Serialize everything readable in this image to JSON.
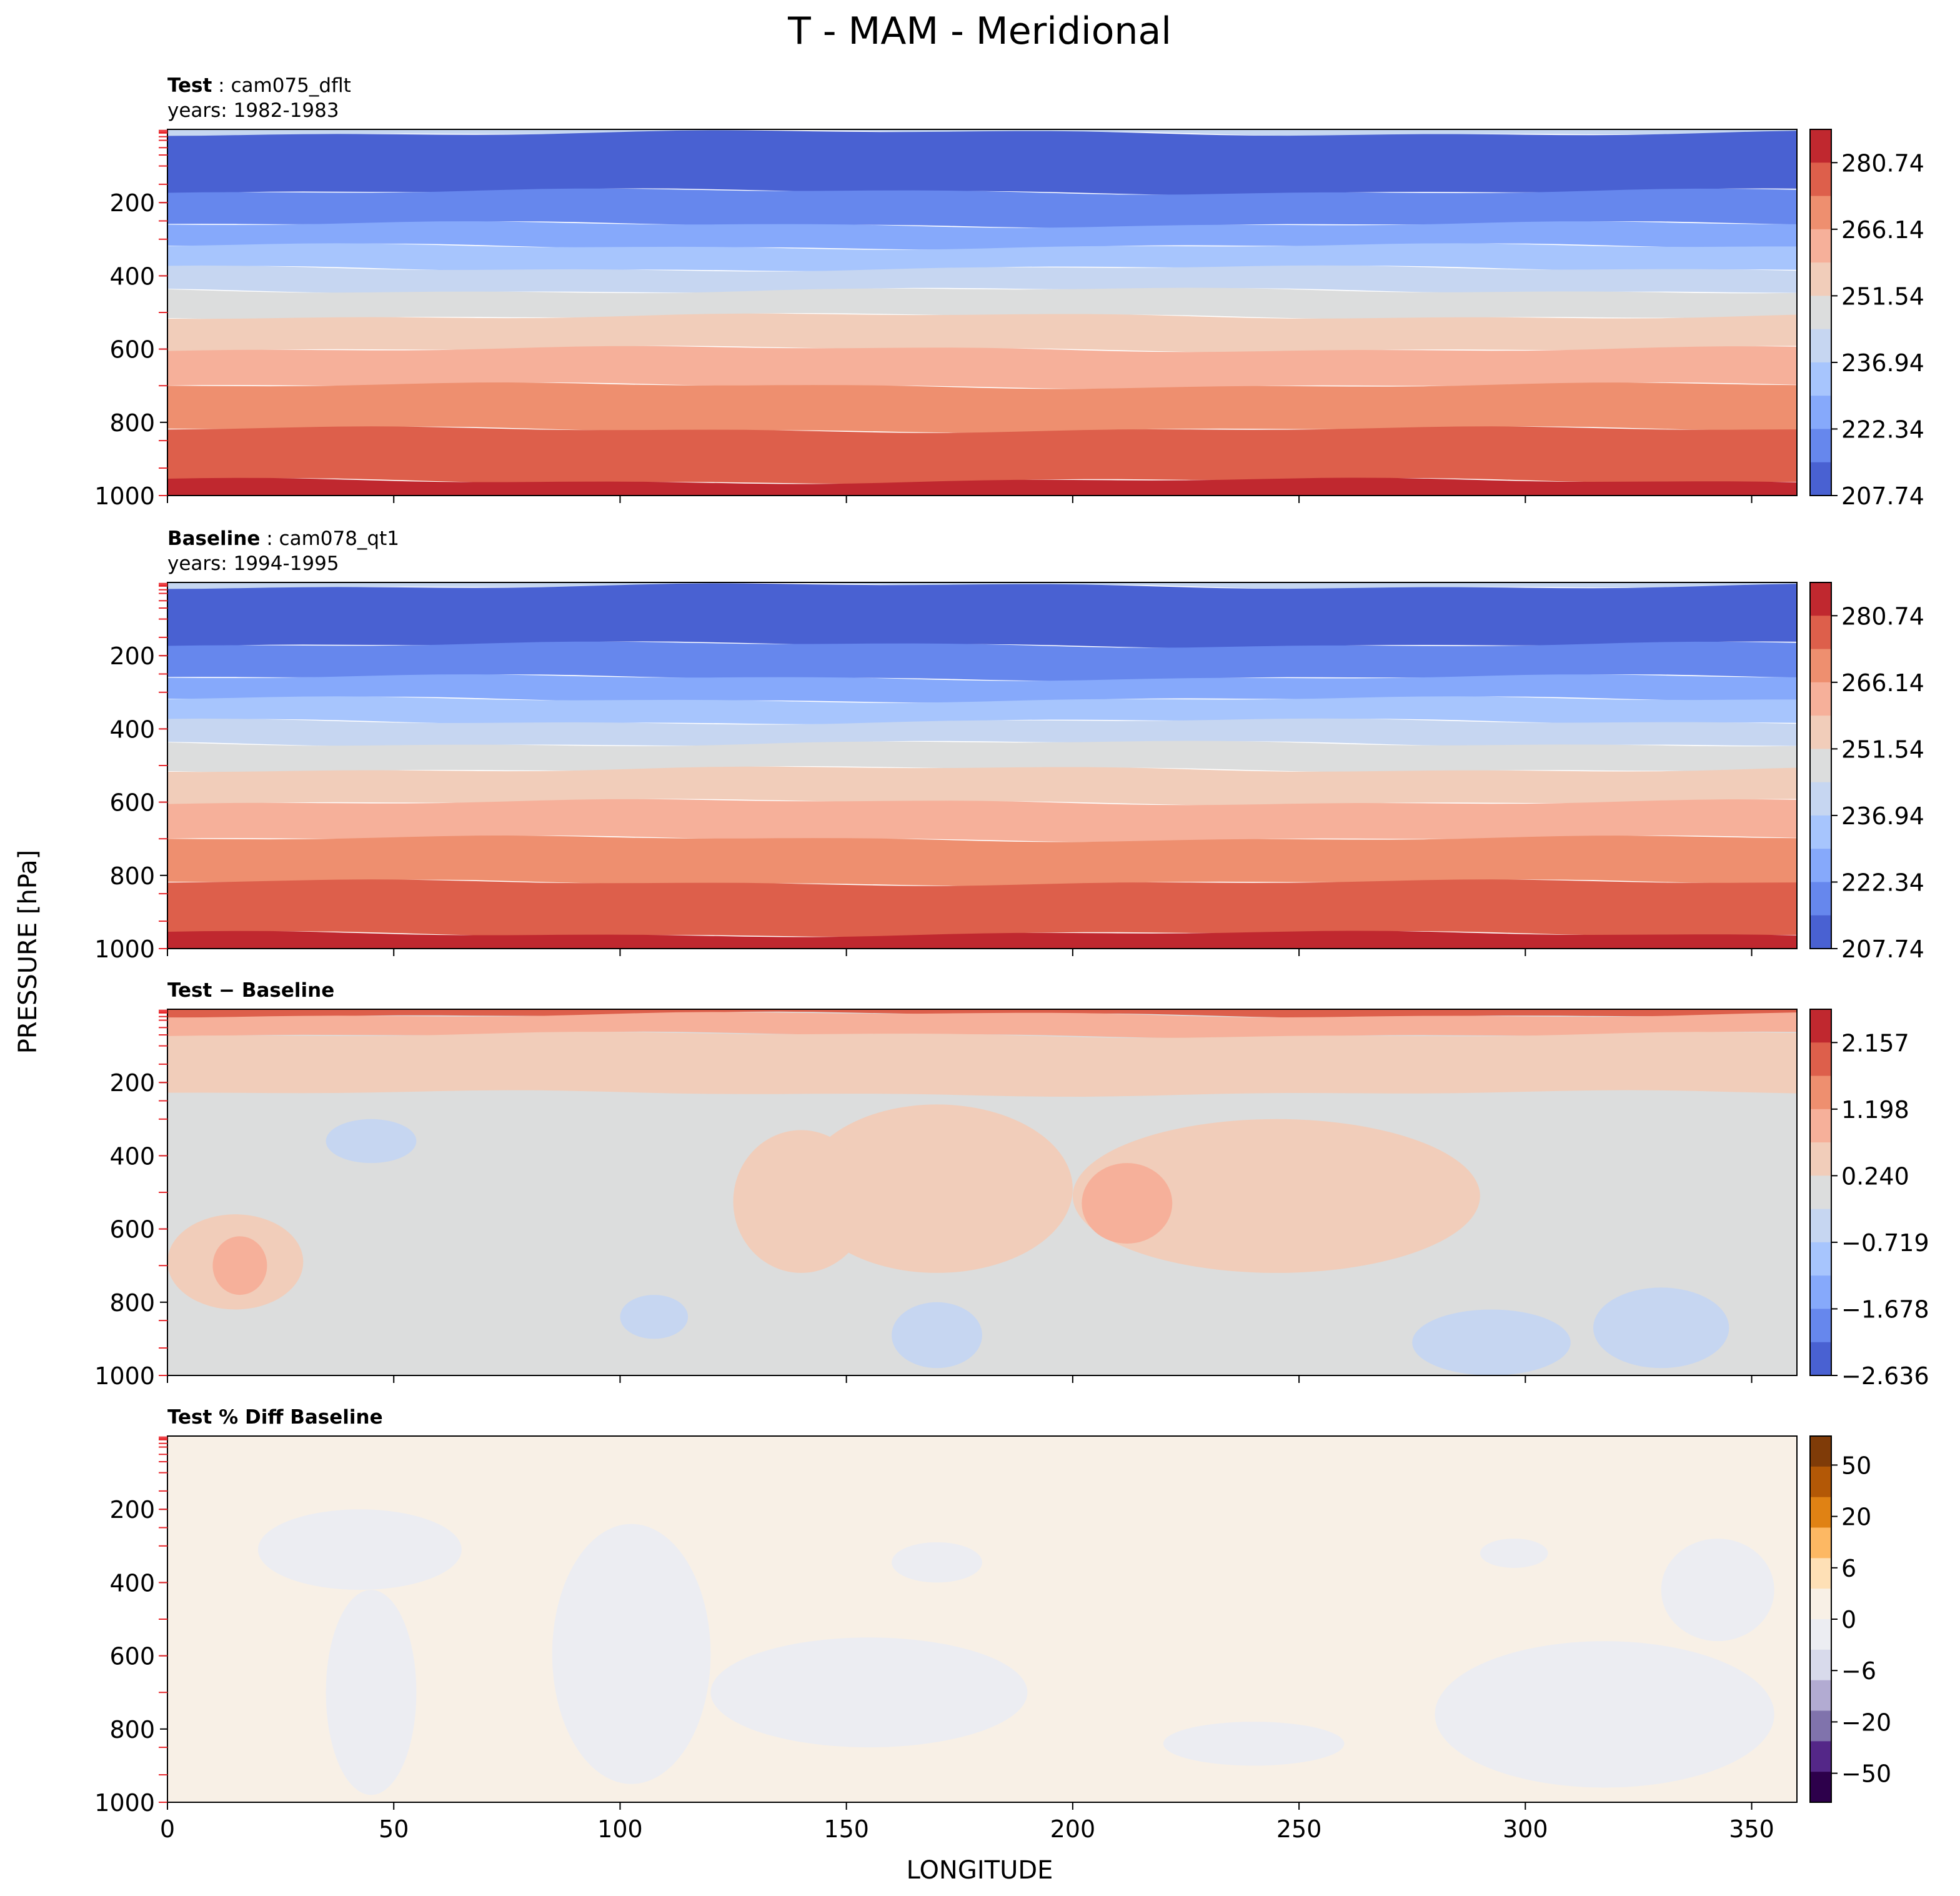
{
  "figure": {
    "title": "T - MAM - Meridional",
    "ylabel": "PRESSURE [hPa]",
    "xlabel": "LONGITUDE"
  },
  "chart_data": [
    {
      "type": "heatmap",
      "panel": "test",
      "title_bold": "Test",
      "title_rest": ": cam075_dflt",
      "years": "years: 1982-1983",
      "xlim": [
        0,
        360
      ],
      "ylim": [
        1000,
        0
      ],
      "xticks": [
        0,
        50,
        100,
        150,
        200,
        250,
        300,
        350
      ],
      "yticks": [
        200,
        400,
        600,
        800,
        1000
      ],
      "bands": [
        {
          "p_top": 0,
          "p_bot": 10,
          "color": "#c6d7f1"
        },
        {
          "p_top": 10,
          "p_bot": 170,
          "color": "#4961d2"
        },
        {
          "p_top": 170,
          "p_bot": 260,
          "color": "#6687ed"
        },
        {
          "p_top": 260,
          "p_bot": 320,
          "color": "#86a9fb"
        },
        {
          "p_top": 320,
          "p_bot": 380,
          "color": "#a7c5fd"
        },
        {
          "p_top": 380,
          "p_bot": 440,
          "color": "#c6d6f1"
        },
        {
          "p_top": 440,
          "p_bot": 510,
          "color": "#dcdddd"
        },
        {
          "p_top": 510,
          "p_bot": 600,
          "color": "#f1cdba"
        },
        {
          "p_top": 600,
          "p_bot": 700,
          "color": "#f6b09a"
        },
        {
          "p_top": 700,
          "p_bot": 820,
          "color": "#ee8f6f"
        },
        {
          "p_top": 820,
          "p_bot": 960,
          "color": "#dd5f4b"
        },
        {
          "p_top": 960,
          "p_bot": 1000,
          "color": "#c0282f"
        }
      ],
      "colorbar": {
        "labels": [
          "280.74",
          "266.14",
          "251.54",
          "236.94",
          "222.34",
          "207.74"
        ],
        "colors": [
          "#c0282f",
          "#dd5f4b",
          "#ee8f6f",
          "#f6b09a",
          "#f1cdba",
          "#dcdddd",
          "#c6d6f1",
          "#a7c5fd",
          "#86a9fb",
          "#6687ed",
          "#4961d2"
        ]
      }
    },
    {
      "type": "heatmap",
      "panel": "baseline",
      "title_bold": "Baseline",
      "title_rest": ": cam078_qt1",
      "years": "years: 1994-1995",
      "xlim": [
        0,
        360
      ],
      "ylim": [
        1000,
        0
      ],
      "xticks": [
        0,
        50,
        100,
        150,
        200,
        250,
        300,
        350
      ],
      "yticks": [
        200,
        400,
        600,
        800,
        1000
      ],
      "bands": [
        {
          "p_top": 0,
          "p_bot": 10,
          "color": "#c6d7f1"
        },
        {
          "p_top": 10,
          "p_bot": 170,
          "color": "#4961d2"
        },
        {
          "p_top": 170,
          "p_bot": 260,
          "color": "#6687ed"
        },
        {
          "p_top": 260,
          "p_bot": 320,
          "color": "#86a9fb"
        },
        {
          "p_top": 320,
          "p_bot": 380,
          "color": "#a7c5fd"
        },
        {
          "p_top": 380,
          "p_bot": 440,
          "color": "#c6d6f1"
        },
        {
          "p_top": 440,
          "p_bot": 510,
          "color": "#dcdddd"
        },
        {
          "p_top": 510,
          "p_bot": 600,
          "color": "#f1cdba"
        },
        {
          "p_top": 600,
          "p_bot": 700,
          "color": "#f6b09a"
        },
        {
          "p_top": 700,
          "p_bot": 820,
          "color": "#ee8f6f"
        },
        {
          "p_top": 820,
          "p_bot": 960,
          "color": "#dd5f4b"
        },
        {
          "p_top": 960,
          "p_bot": 1000,
          "color": "#c0282f"
        }
      ],
      "colorbar": {
        "labels": [
          "280.74",
          "266.14",
          "251.54",
          "236.94",
          "222.34",
          "207.74"
        ],
        "colors": [
          "#c0282f",
          "#dd5f4b",
          "#ee8f6f",
          "#f6b09a",
          "#f1cdba",
          "#dcdddd",
          "#c6d6f1",
          "#a7c5fd",
          "#86a9fb",
          "#6687ed",
          "#4961d2"
        ]
      }
    },
    {
      "type": "heatmap",
      "panel": "diff",
      "title_bold": "Test − Baseline",
      "title_rest": "",
      "years": "",
      "xlim": [
        0,
        360
      ],
      "ylim": [
        1000,
        0
      ],
      "xticks": [
        0,
        50,
        100,
        150,
        200,
        250,
        300,
        350
      ],
      "yticks": [
        200,
        400,
        600,
        800,
        1000
      ],
      "background": "#dcdddd",
      "bands": [
        {
          "p_top": 0,
          "p_bot": 15,
          "color": "#dd5f4b"
        },
        {
          "p_top": 15,
          "p_bot": 70,
          "color": "#f6b09a"
        },
        {
          "p_top": 70,
          "p_bot": 230,
          "color": "#f1cdba"
        }
      ],
      "regions": [
        {
          "lon": [
            140,
            200
          ],
          "p": [
            260,
            720
          ],
          "color": "#f1cdba"
        },
        {
          "lon": [
            125,
            155
          ],
          "p": [
            330,
            720
          ],
          "color": "#f1cdba"
        },
        {
          "lon": [
            200,
            290
          ],
          "p": [
            300,
            720
          ],
          "color": "#f1cdba"
        },
        {
          "lon": [
            202,
            222
          ],
          "p": [
            420,
            640
          ],
          "color": "#f6b09a"
        },
        {
          "lon": [
            0,
            30
          ],
          "p": [
            560,
            820
          ],
          "color": "#f1cdba"
        },
        {
          "lon": [
            10,
            22
          ],
          "p": [
            620,
            780
          ],
          "color": "#f6b09a"
        },
        {
          "lon": [
            35,
            55
          ],
          "p": [
            300,
            420
          ],
          "color": "#c6d6f1"
        },
        {
          "lon": [
            100,
            115
          ],
          "p": [
            780,
            900
          ],
          "color": "#c6d6f1"
        },
        {
          "lon": [
            160,
            180
          ],
          "p": [
            800,
            980
          ],
          "color": "#c6d6f1"
        },
        {
          "lon": [
            275,
            310
          ],
          "p": [
            820,
            1000
          ],
          "color": "#c6d6f1"
        },
        {
          "lon": [
            315,
            345
          ],
          "p": [
            760,
            980
          ],
          "color": "#c6d6f1"
        }
      ],
      "colorbar": {
        "labels": [
          "2.157",
          "1.198",
          "0.240",
          "−0.719",
          "−1.678",
          "−2.636"
        ],
        "colors": [
          "#c0282f",
          "#dd5f4b",
          "#ee8f6f",
          "#f6b09a",
          "#f1cdba",
          "#dcdddd",
          "#c6d6f1",
          "#a7c5fd",
          "#86a9fb",
          "#6687ed",
          "#4961d2"
        ]
      }
    },
    {
      "type": "heatmap",
      "panel": "pctdiff",
      "title_bold": "Test % Diff Baseline",
      "title_rest": "",
      "years": "",
      "xlim": [
        0,
        360
      ],
      "ylim": [
        1000,
        0
      ],
      "xticks": [
        0,
        50,
        100,
        150,
        200,
        250,
        300,
        350
      ],
      "yticks": [
        200,
        400,
        600,
        800,
        1000
      ],
      "background": "#f8f0e6",
      "bands": [],
      "regions": [
        {
          "lon": [
            20,
            65
          ],
          "p": [
            200,
            420
          ],
          "color": "#ecedf2"
        },
        {
          "lon": [
            35,
            55
          ],
          "p": [
            420,
            980
          ],
          "color": "#ecedf2"
        },
        {
          "lon": [
            85,
            120
          ],
          "p": [
            240,
            950
          ],
          "color": "#ecedf2"
        },
        {
          "lon": [
            120,
            190
          ],
          "p": [
            550,
            850
          ],
          "color": "#ecedf2"
        },
        {
          "lon": [
            160,
            180
          ],
          "p": [
            290,
            400
          ],
          "color": "#ecedf2"
        },
        {
          "lon": [
            290,
            305
          ],
          "p": [
            280,
            360
          ],
          "color": "#ecedf2"
        },
        {
          "lon": [
            280,
            355
          ],
          "p": [
            560,
            960
          ],
          "color": "#ecedf2"
        },
        {
          "lon": [
            330,
            355
          ],
          "p": [
            280,
            560
          ],
          "color": "#ecedf2"
        },
        {
          "lon": [
            220,
            260
          ],
          "p": [
            780,
            900
          ],
          "color": "#ecedf2"
        }
      ],
      "colorbar": {
        "labels": [
          "50",
          "20",
          "6",
          "0",
          "−6",
          "−20",
          "−50"
        ],
        "colors": [
          "#7f3b08",
          "#b35806",
          "#e08214",
          "#fdb863",
          "#fee0b6",
          "#f8f0e6",
          "#ecedf2",
          "#d8daeb",
          "#b2abd2",
          "#8073ac",
          "#542788",
          "#2d004b"
        ]
      }
    }
  ]
}
